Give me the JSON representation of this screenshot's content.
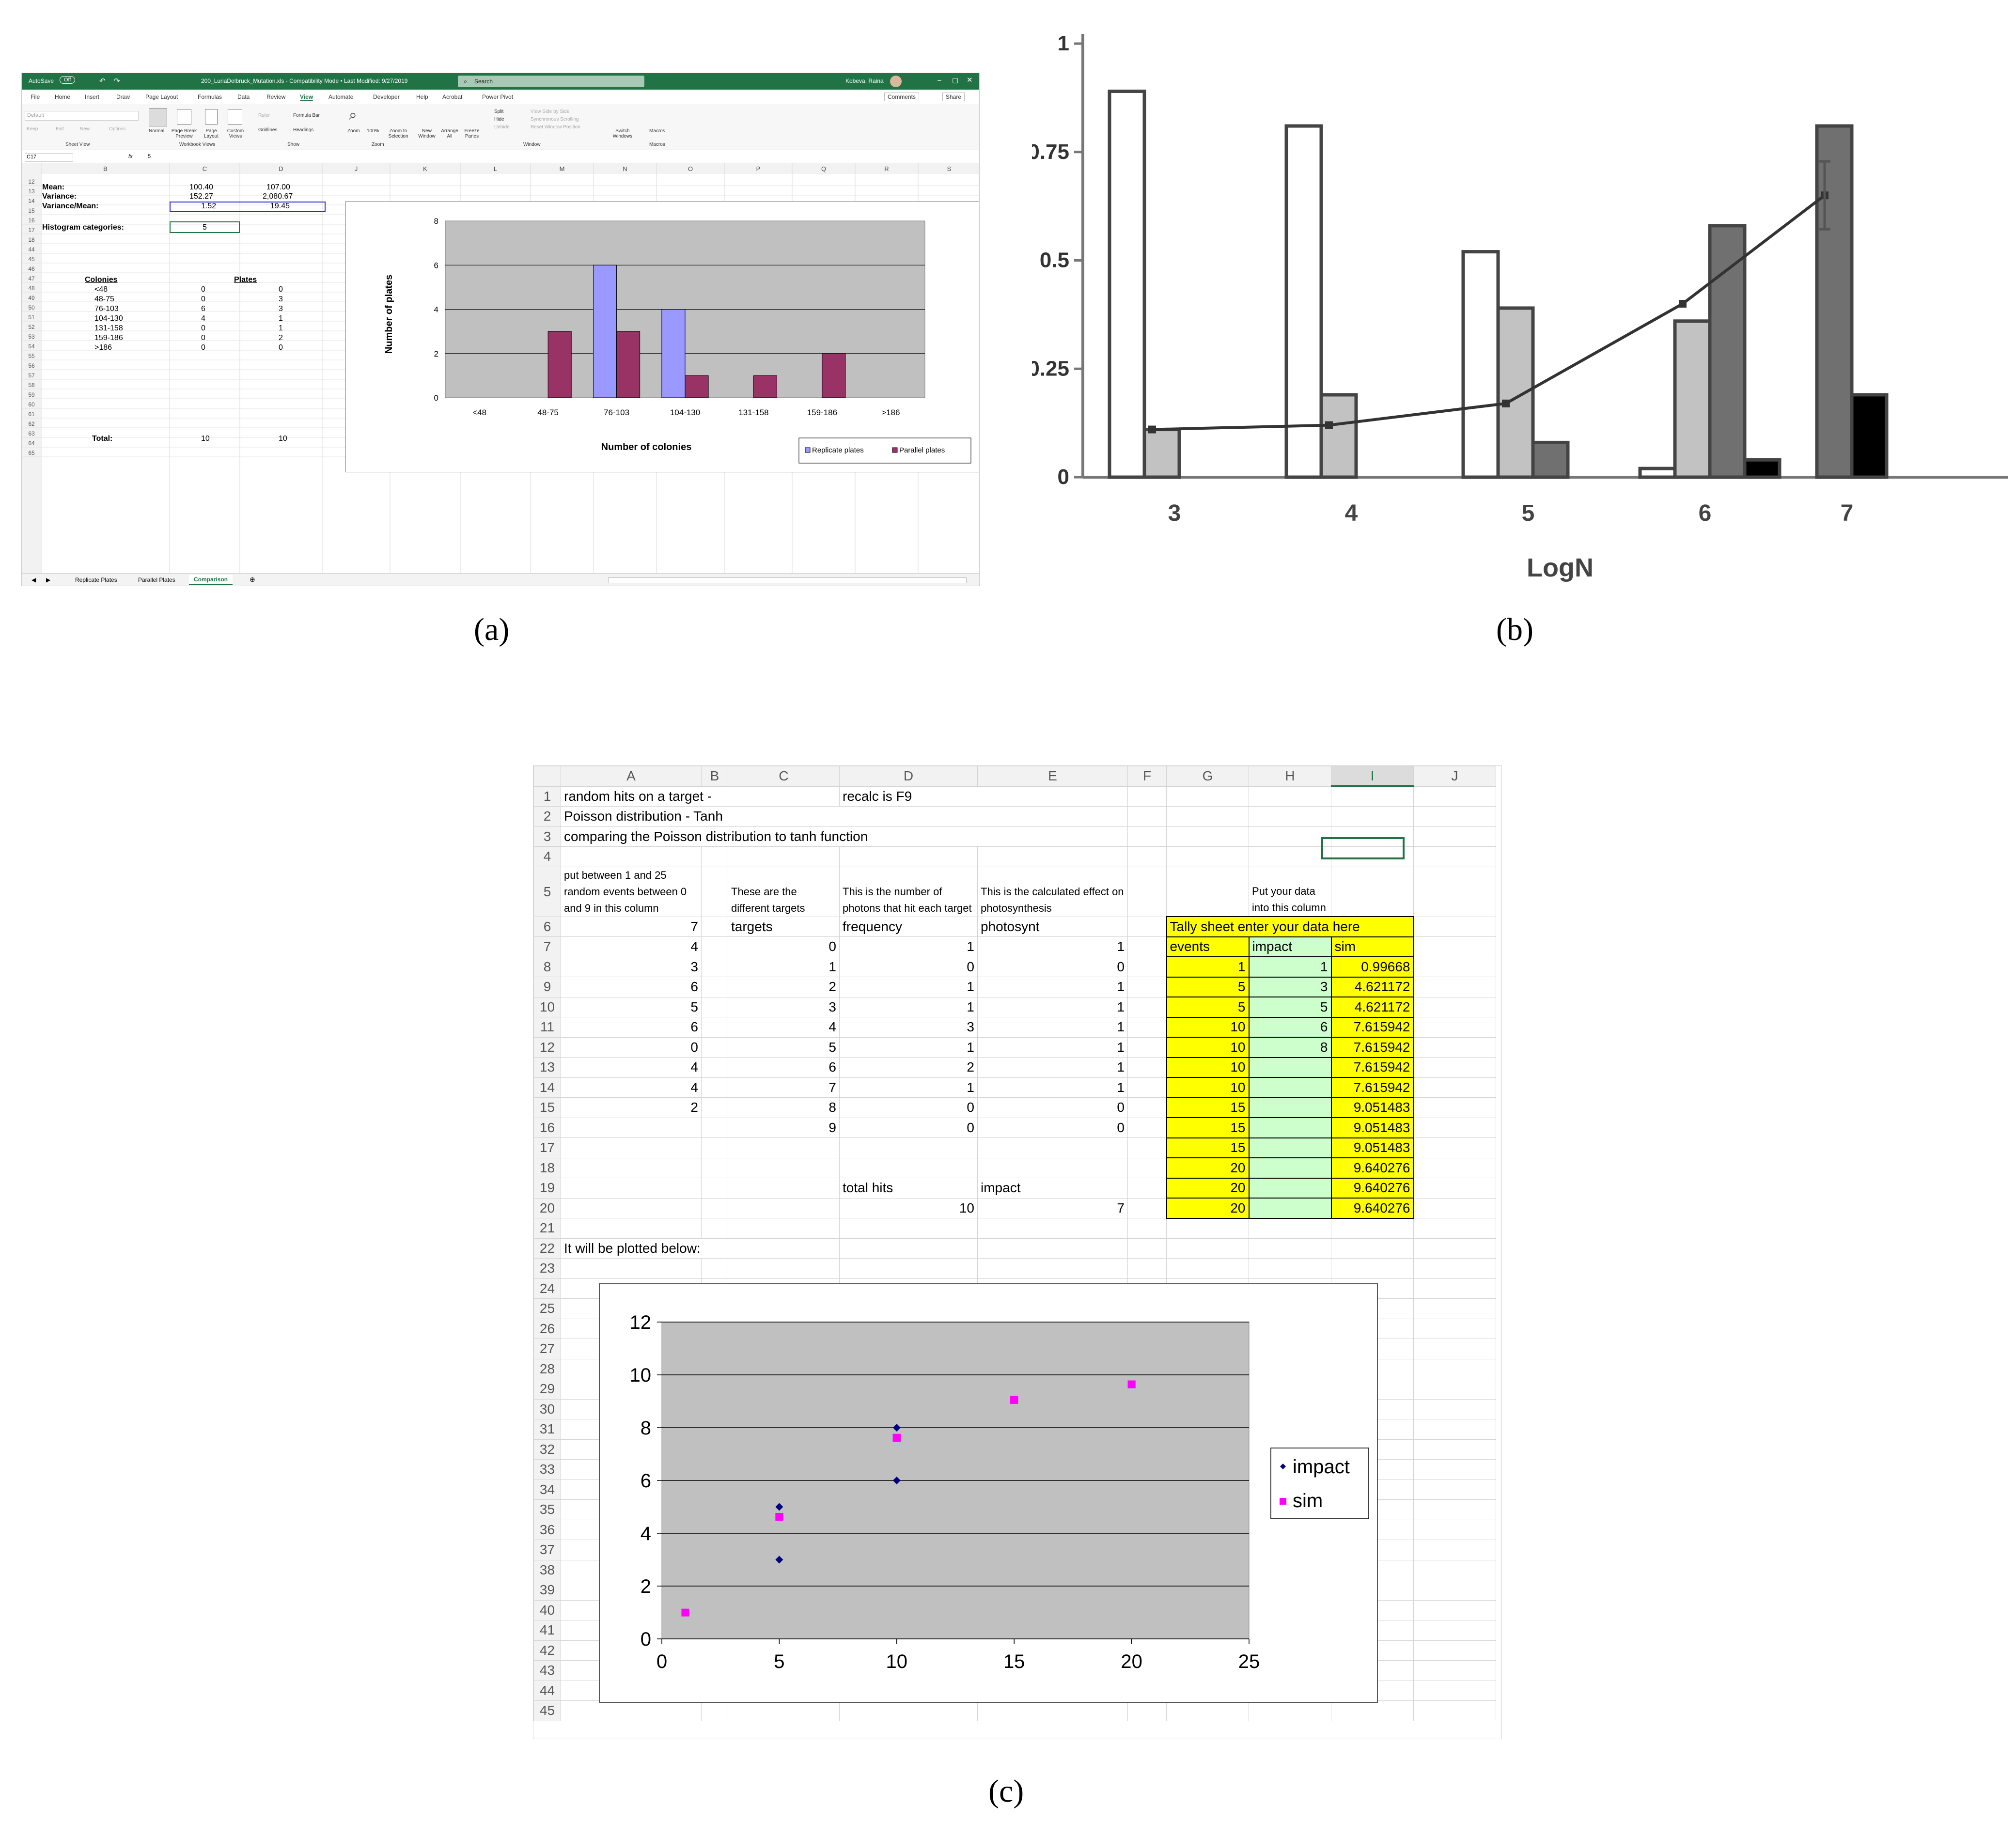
{
  "panel_labels": {
    "a": "(a)",
    "b": "(b)",
    "c": "(c)"
  },
  "panel_a": {
    "titlebar": {
      "autosave": "AutoSave",
      "autosave_state": "Off",
      "filename": "200_LuriaDelbruck_Mutation.xls - Compatibility Mode • Last Modified: 9/27/2019",
      "search": "Search",
      "user": "Kobeva, Raina"
    },
    "menu_tabs": [
      "File",
      "Home",
      "Insert",
      "Draw",
      "Page Layout",
      "Formulas",
      "Data",
      "Review",
      "View",
      "Automate",
      "Developer",
      "Help",
      "Acrobat",
      "Power Pivot"
    ],
    "comments_label": "Comments",
    "share_label": "Share",
    "ribbon": {
      "sheet_view": {
        "default": "Default",
        "keep": "Keep",
        "exit": "Exit",
        "new": "New",
        "options": "Options",
        "group": "Sheet View"
      },
      "workbook_views": {
        "normal": "Normal",
        "page_break": "Page Break Preview",
        "page_layout": "Page Layout",
        "custom": "Custom Views",
        "group": "Workbook Views"
      },
      "show": {
        "ruler": "Ruler",
        "formula_bar": "Formula Bar",
        "gridlines": "Gridlines",
        "headings": "Headings",
        "group": "Show"
      },
      "zoom": {
        "zoom": "Zoom",
        "hundred": "100%",
        "zoom_sel": "Zoom to Selection",
        "group": "Zoom"
      },
      "window": {
        "new": "New Window",
        "arrange": "Arrange All",
        "freeze": "Freeze Panes",
        "split": "Split",
        "hide": "Hide",
        "unhide": "Unhide",
        "side": "View Side by Side",
        "sync": "Synchronous Scrolling",
        "reset": "Reset Window Position",
        "switch": "Switch Windows",
        "group": "Window"
      },
      "macros": {
        "label": "Macros",
        "group": "Macros"
      }
    },
    "namebox": "C17",
    "formula": "5",
    "col_headers": [
      "B",
      "C",
      "D",
      "J",
      "K",
      "L",
      "M",
      "N",
      "O",
      "P",
      "Q",
      "R",
      "S"
    ],
    "row_numbers": [
      "12",
      "13",
      "14",
      "15",
      "16",
      "17",
      "18",
      "44",
      "45",
      "46",
      "47",
      "48",
      "49",
      "50",
      "51",
      "52",
      "53",
      "54",
      "55",
      "56",
      "57",
      "58",
      "59",
      "60",
      "61",
      "62",
      "63",
      "64",
      "65"
    ],
    "stats": {
      "mean_label": "Mean:",
      "mean_c": "100.40",
      "mean_d": "107.00",
      "var_label": "Variance:",
      "var_c": "152.27",
      "var_d": "2,080.67",
      "vm_label": "Variance/Mean:",
      "vm_c": "1.52",
      "vm_d": "19.45",
      "hist_label": "Histogram categories:",
      "hist_value": "5"
    },
    "table": {
      "col1": "Colonies",
      "col2": "Plates",
      "rows": [
        {
          "cat": "<48",
          "rep": "0",
          "par": "0"
        },
        {
          "cat": "48-75",
          "rep": "0",
          "par": "3"
        },
        {
          "cat": "76-103",
          "rep": "6",
          "par": "3"
        },
        {
          "cat": "104-130",
          "rep": "4",
          "par": "1"
        },
        {
          "cat": "131-158",
          "rep": "0",
          "par": "1"
        },
        {
          "cat": "159-186",
          "rep": "0",
          "par": "2"
        },
        {
          "cat": ">186",
          "rep": "0",
          "par": "0"
        }
      ],
      "total_label": "Total:",
      "total_rep": "10",
      "total_par": "10"
    },
    "sheet_tabs": [
      "Replicate Plates",
      "Parallel Plates",
      "Comparison"
    ],
    "colors": {
      "excel_green": "#217346",
      "replicate": "#9999ff",
      "parallel": "#993366",
      "plot_bg": "#c0c0c0"
    }
  },
  "chart_data": [
    {
      "panel": "a",
      "type": "bar",
      "categories": [
        "<48",
        "48-75",
        "76-103",
        "104-130",
        "131-158",
        "159-186",
        ">186"
      ],
      "series": [
        {
          "name": "Replicate plates",
          "values": [
            0,
            0,
            6,
            4,
            0,
            0,
            0
          ]
        },
        {
          "name": "Parallel plates",
          "values": [
            0,
            3,
            3,
            1,
            1,
            2,
            0
          ]
        }
      ],
      "yticks": [
        "0",
        "2",
        "4",
        "6",
        "8"
      ],
      "title": "",
      "xlabel": "Number of colonies",
      "ylabel": "Number of plates",
      "ylim": [
        0,
        8
      ],
      "legend": "bottom-right"
    },
    {
      "panel": "b",
      "type": "bar",
      "categories": [
        "3",
        "4",
        "5",
        "6",
        "7"
      ],
      "series": [
        {
          "name": "white",
          "values": [
            0.89,
            0.81,
            0.52,
            0.02,
            null
          ]
        },
        {
          "name": "light gray",
          "values": [
            0.11,
            0.19,
            0.39,
            0.36,
            null
          ]
        },
        {
          "name": "dark gray",
          "values": [
            0.0,
            0.0,
            0.08,
            0.58,
            0.81
          ]
        },
        {
          "name": "black",
          "values": [
            0.0,
            0.0,
            0.0,
            0.04,
            0.19
          ]
        }
      ],
      "line": {
        "values": [
          0.11,
          0.12,
          0.17,
          0.4,
          0.65
        ]
      },
      "yticks": [
        "0",
        "0.25",
        "0.5",
        "0.75",
        "1"
      ],
      "xlabel": "LogN",
      "ylabel": "",
      "ylim": [
        0,
        1
      ]
    },
    {
      "panel": "c",
      "type": "scatter",
      "series": [
        {
          "name": "impact",
          "x": [
            1,
            5,
            5,
            10,
            10
          ],
          "y": [
            1,
            3,
            5,
            6,
            8
          ],
          "color": "#000080"
        },
        {
          "name": "sim",
          "x": [
            1,
            5,
            5,
            10,
            10,
            10,
            10,
            15,
            15,
            15,
            20,
            20,
            20
          ],
          "y": [
            0.99668,
            4.621172,
            4.621172,
            7.615942,
            7.615942,
            7.615942,
            7.615942,
            9.051483,
            9.051483,
            9.051483,
            9.640276,
            9.640276,
            9.640276
          ],
          "color": "#ff00ff"
        }
      ],
      "xticks": [
        "0",
        "5",
        "10",
        "15",
        "20",
        "25"
      ],
      "yticks": [
        "0",
        "2",
        "4",
        "6",
        "8",
        "10",
        "12"
      ],
      "xlim": [
        0,
        25
      ],
      "ylim": [
        0,
        12
      ],
      "legend": "right"
    }
  ],
  "panel_c": {
    "col_headers": [
      "A",
      "B",
      "C",
      "D",
      "E",
      "F",
      "G",
      "H",
      "I",
      "J"
    ],
    "rows": {
      "r1": {
        "a": "random hits on a target -",
        "d": "recalc is F9"
      },
      "r2": {
        "a": "Poisson distribution - Tanh"
      },
      "r3": {
        "a": "comparing the Poisson distribution to tanh function"
      },
      "r5": {
        "a": "put between 1 and 25 random events between 0 and 9 in this column",
        "c": "These are the different targets",
        "d": "This is the number of photons that hit each target",
        "e": "This is the calculated effect on photosynthesis",
        "h": "Put your data into this column"
      },
      "r6": {
        "a": "7",
        "c": "targets",
        "d": "frequency",
        "e": "photosynt",
        "tally": "Tally sheet  enter your data here"
      },
      "r7": {
        "g": "events",
        "h": "impact",
        "i": "sim"
      },
      "r19": {
        "d": "total hits",
        "e": "impact"
      },
      "r20": {
        "d": "10",
        "e": "7"
      },
      "r22": {
        "a": "It will be plotted below:"
      }
    },
    "colA": [
      "4",
      "3",
      "6",
      "5",
      "6",
      "0",
      "4",
      "4",
      "2"
    ],
    "colC": [
      "0",
      "1",
      "2",
      "3",
      "4",
      "5",
      "6",
      "7",
      "8",
      "9"
    ],
    "colD": [
      "1",
      "0",
      "1",
      "1",
      "3",
      "1",
      "2",
      "1",
      "0",
      "0"
    ],
    "colE": [
      "1",
      "0",
      "1",
      "1",
      "1",
      "1",
      "1",
      "1",
      "0",
      "0"
    ],
    "tally_events": [
      "1",
      "5",
      "5",
      "10",
      "10",
      "10",
      "10",
      "15",
      "15",
      "15",
      "20",
      "20",
      "20"
    ],
    "tally_impact": [
      "1",
      "3",
      "5",
      "6",
      "8",
      "",
      "",
      "",
      "",
      "",
      "",
      "",
      ""
    ],
    "tally_sim": [
      "0.99668",
      "4.621172",
      "4.621172",
      "7.615942",
      "7.615942",
      "7.615942",
      "7.615942",
      "9.051483",
      "9.051483",
      "9.051483",
      "9.640276",
      "9.640276",
      "9.640276"
    ],
    "row_numbers": [
      "1",
      "2",
      "3",
      "4",
      "5",
      "6",
      "7",
      "8",
      "9",
      "10",
      "11",
      "12",
      "13",
      "14",
      "15",
      "16",
      "17",
      "18",
      "19",
      "20",
      "21",
      "22",
      "23",
      "24",
      "25",
      "26",
      "27",
      "28",
      "29",
      "30",
      "31",
      "32",
      "33",
      "34",
      "35",
      "36",
      "37",
      "38",
      "39",
      "40",
      "41",
      "42",
      "43",
      "44",
      "45"
    ]
  }
}
